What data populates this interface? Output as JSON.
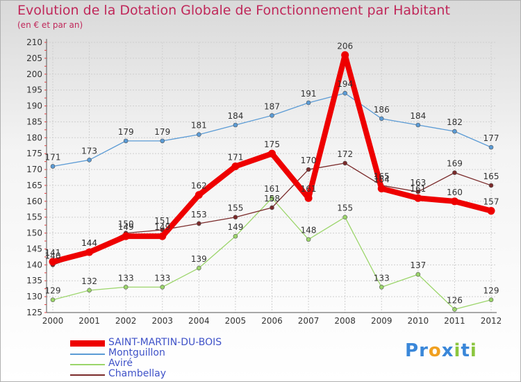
{
  "header": {
    "title": "Evolution de la Dotation Globale de Fonctionnement par Habitant",
    "subtitle": "(en € et par an)"
  },
  "brand": {
    "name": "Proxiti",
    "letters": [
      "P",
      "r",
      "o",
      "x",
      "i",
      "t",
      "i"
    ],
    "colors": [
      "#3a87d9",
      "#3a87d9",
      "#f0a020",
      "#3a87d9",
      "#8cc63f",
      "#3a87d9",
      "#8cc63f"
    ]
  },
  "chart_data": {
    "type": "line",
    "title": "Evolution de la Dotation Globale de Fonctionnement par Habitant",
    "subtitle": "(en € et par an)",
    "xlabel": "",
    "ylabel": "",
    "ylim": [
      125,
      210
    ],
    "yticks": [
      125,
      130,
      135,
      140,
      145,
      150,
      155,
      160,
      165,
      170,
      175,
      180,
      185,
      190,
      195,
      200,
      205,
      210
    ],
    "grid": true,
    "legend_position": "bottom-left",
    "x": [
      "2000",
      "2001",
      "2002",
      "2003",
      "2004",
      "2005",
      "2006",
      "2007",
      "2008",
      "2009",
      "2010",
      "2011",
      "2012"
    ],
    "series": [
      {
        "name": "Montguillon",
        "color": "#5b9bd5",
        "width": "thin",
        "values": [
          171,
          173,
          179,
          179,
          181,
          184,
          187,
          191,
          194,
          186,
          184,
          182,
          177
        ]
      },
      {
        "name": "Aviré",
        "color": "#9bd56a",
        "width": "thin",
        "values": [
          129,
          132,
          133,
          133,
          139,
          149,
          161,
          148,
          155,
          133,
          137,
          126,
          129
        ]
      },
      {
        "name": "Chambellay",
        "color": "#7a2a2a",
        "width": "thin",
        "values": [
          140,
          144,
          150,
          151,
          153,
          155,
          158,
          170,
          172,
          165,
          163,
          169,
          165
        ]
      },
      {
        "name": "SAINT-MARTIN-DU-BOIS",
        "color": "#ee0000",
        "width": "thick",
        "values": [
          141,
          144,
          149,
          149,
          162,
          171,
          175,
          161,
          206,
          164,
          161,
          160,
          157
        ]
      }
    ],
    "legend_order": [
      "SAINT-MARTIN-DU-BOIS",
      "Montguillon",
      "Aviré",
      "Chambellay"
    ]
  }
}
